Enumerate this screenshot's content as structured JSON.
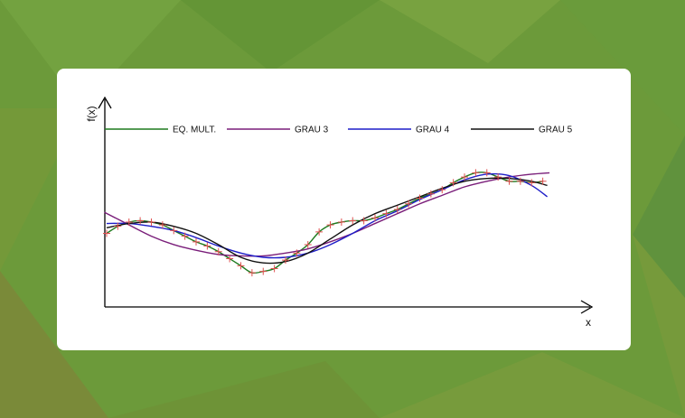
{
  "chart_data": {
    "type": "line",
    "xlabel": "x",
    "ylabel": "f(x)",
    "xlim": [
      0,
      10
    ],
    "ylim": [
      0,
      10
    ],
    "grid": false,
    "legend_placement": "top",
    "points": {
      "x": [
        0,
        0.25,
        0.5,
        0.75,
        1,
        1.25,
        1.5,
        1.75,
        2,
        2.25,
        2.5,
        2.75,
        3,
        3.25,
        3.5,
        3.75,
        4,
        4.25,
        4.5,
        4.75,
        5,
        5.25,
        5.5,
        5.75,
        6,
        6.25,
        6.5,
        6.75,
        7,
        7.25,
        7.5,
        7.75,
        8,
        8.25,
        8.5,
        8.75,
        9,
        9.25,
        9.5,
        9.75
      ],
      "y": [
        4.2,
        4.7,
        5.0,
        5.1,
        5.0,
        4.8,
        4.4,
        4.0,
        3.6,
        3.3,
        2.9,
        2.4,
        1.9,
        1.4,
        1.5,
        1.7,
        2.3,
        2.8,
        3.4,
        4.3,
        4.8,
        5.0,
        5.1,
        5.1,
        5.3,
        5.6,
        5.9,
        6.3,
        6.7,
        7.0,
        7.3,
        7.8,
        8.2,
        8.5,
        8.5,
        8.2,
        7.9,
        7.9,
        7.8,
        7.9
      ],
      "color": "#e05050"
    },
    "series": [
      {
        "name": "EQ. MULT.",
        "color": "#1e7a1e",
        "x": [
          0,
          0.25,
          0.5,
          0.75,
          1,
          1.25,
          1.5,
          1.75,
          2,
          2.25,
          2.5,
          2.75,
          3,
          3.25,
          3.5,
          3.75,
          4,
          4.25,
          4.5,
          4.75,
          5,
          5.25,
          5.5,
          5.75,
          6,
          6.25,
          6.5,
          6.75,
          7,
          7.25,
          7.5,
          7.75,
          8,
          8.25,
          8.5,
          8.75,
          9,
          9.25,
          9.5,
          9.75
        ],
        "y": [
          4.2,
          4.7,
          5.0,
          5.1,
          5.0,
          4.8,
          4.4,
          4.0,
          3.6,
          3.3,
          2.9,
          2.4,
          1.9,
          1.4,
          1.5,
          1.7,
          2.3,
          2.8,
          3.4,
          4.3,
          4.8,
          5.0,
          5.1,
          5.1,
          5.3,
          5.6,
          5.9,
          6.3,
          6.7,
          7.0,
          7.3,
          7.8,
          8.2,
          8.5,
          8.5,
          8.2,
          7.9,
          7.9,
          7.8,
          7.9
        ]
      },
      {
        "name": "GRAU 3",
        "color": "#7a1e7a",
        "x": [
          -0.05,
          0.5,
          1,
          1.5,
          2,
          2.5,
          3,
          3.5,
          4,
          4.5,
          5,
          5.5,
          6,
          6.5,
          7,
          7.5,
          8,
          8.5,
          9,
          9.5,
          9.9
        ],
        "y": [
          5.7,
          4.8,
          4.0,
          3.4,
          3.0,
          2.7,
          2.6,
          2.6,
          2.8,
          3.1,
          3.6,
          4.2,
          4.9,
          5.6,
          6.3,
          6.9,
          7.5,
          7.9,
          8.2,
          8.4,
          8.5
        ]
      },
      {
        "name": "GRAU 4",
        "color": "#1e1ec8",
        "x": [
          0,
          0.5,
          1,
          1.5,
          2,
          2.5,
          3,
          3.5,
          4,
          4.5,
          5,
          5.5,
          6,
          6.5,
          7,
          7.5,
          8,
          8.5,
          9,
          9.5,
          9.85
        ],
        "y": [
          4.9,
          4.9,
          4.7,
          4.4,
          3.9,
          3.3,
          2.8,
          2.5,
          2.5,
          2.8,
          3.4,
          4.2,
          5.1,
          5.8,
          6.6,
          7.3,
          8.0,
          8.4,
          8.3,
          7.6,
          6.8
        ]
      },
      {
        "name": "GRAU 5",
        "color": "#111111",
        "x": [
          0,
          0.5,
          1,
          1.5,
          2,
          2.5,
          3,
          3.5,
          4,
          4.5,
          5,
          5.5,
          6,
          6.5,
          7,
          7.5,
          8,
          8.5,
          9,
          9.5,
          9.85
        ],
        "y": [
          4.6,
          4.9,
          5.0,
          4.7,
          4.2,
          3.4,
          2.5,
          2.1,
          2.2,
          2.8,
          3.8,
          4.8,
          5.6,
          6.2,
          6.8,
          7.4,
          7.9,
          8.1,
          8.1,
          7.9,
          7.6
        ]
      }
    ]
  }
}
